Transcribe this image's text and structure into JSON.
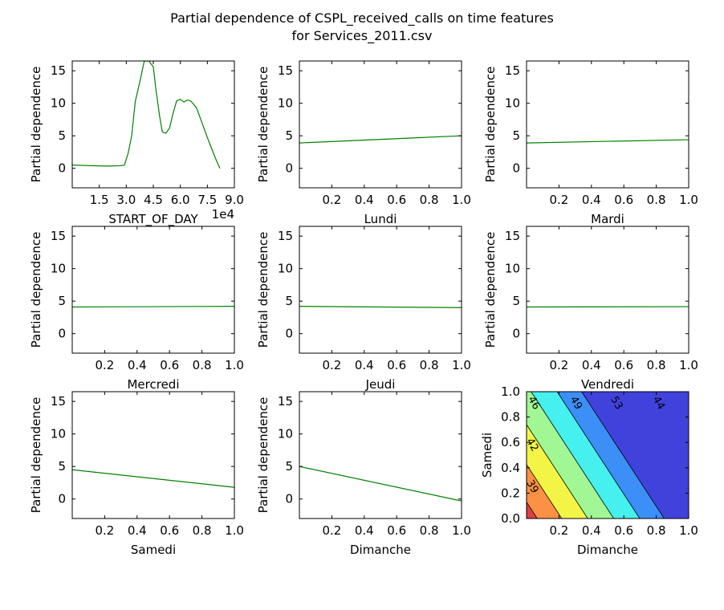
{
  "title_line1": "Partial dependence of CSPL_received_calls on time features",
  "title_line2": "for Services_2011.csv",
  "colors": {
    "line": "#008000",
    "axes": "#000000",
    "background": "#ffffff"
  },
  "chart_data": [
    {
      "type": "line",
      "xlabel": "START_OF_DAY",
      "ylabel": "Partial dependence",
      "x_offset_text": "1e4",
      "xlim": [
        0,
        9.0
      ],
      "ylim": [
        -3,
        16.5
      ],
      "xticks": [
        1.5,
        3.0,
        4.5,
        6.0,
        7.5,
        9.0
      ],
      "xtick_labels": [
        "1.5",
        "3.0",
        "4.5",
        "6.0",
        "7.5",
        "9.0"
      ],
      "yticks": [
        0,
        5,
        10,
        15
      ],
      "ytick_labels": [
        "0",
        "5",
        "10",
        "15"
      ],
      "series": [
        {
          "x": [
            0.0,
            1.0,
            2.0,
            2.7,
            2.9,
            3.1,
            3.3,
            3.5,
            3.75,
            4.0,
            4.25,
            4.5,
            4.65,
            4.85,
            5.0,
            5.2,
            5.4,
            5.6,
            5.8,
            6.0,
            6.2,
            6.4,
            6.6,
            6.9,
            7.2,
            7.6,
            8.0,
            8.2
          ],
          "y": [
            0.5,
            0.4,
            0.35,
            0.4,
            0.5,
            2.3,
            5.0,
            10.3,
            13.3,
            16.5,
            16.5,
            15.6,
            12.0,
            8.0,
            5.6,
            5.4,
            6.2,
            8.5,
            10.4,
            10.6,
            10.2,
            10.5,
            10.3,
            9.3,
            7.0,
            4.0,
            1.2,
            0.0
          ]
        }
      ]
    },
    {
      "type": "line",
      "xlabel": "Lundi",
      "ylabel": "Partial dependence",
      "xlim": [
        0,
        1.0
      ],
      "ylim": [
        -3,
        16.5
      ],
      "xticks": [
        0.2,
        0.4,
        0.6,
        0.8,
        1.0
      ],
      "xtick_labels": [
        "0.2",
        "0.4",
        "0.6",
        "0.8",
        "1.0"
      ],
      "yticks": [
        0,
        5,
        10,
        15
      ],
      "ytick_labels": [
        "0",
        "5",
        "10",
        "15"
      ],
      "series": [
        {
          "x": [
            0.0,
            1.0
          ],
          "y": [
            3.9,
            5.0
          ]
        }
      ]
    },
    {
      "type": "line",
      "xlabel": "Mardi",
      "ylabel": "Partial dependence",
      "xlim": [
        0,
        1.0
      ],
      "ylim": [
        -3,
        16.5
      ],
      "xticks": [
        0.2,
        0.4,
        0.6,
        0.8,
        1.0
      ],
      "xtick_labels": [
        "0.2",
        "0.4",
        "0.6",
        "0.8",
        "1.0"
      ],
      "yticks": [
        0,
        5,
        10,
        15
      ],
      "ytick_labels": [
        "0",
        "5",
        "10",
        "15"
      ],
      "series": [
        {
          "x": [
            0.0,
            1.0
          ],
          "y": [
            3.9,
            4.4
          ]
        }
      ]
    },
    {
      "type": "line",
      "xlabel": "Mercredi",
      "ylabel": "Partial dependence",
      "xlim": [
        0,
        1.0
      ],
      "ylim": [
        -3,
        16.5
      ],
      "xticks": [
        0.2,
        0.4,
        0.6,
        0.8,
        1.0
      ],
      "xtick_labels": [
        "0.2",
        "0.4",
        "0.6",
        "0.8",
        "1.0"
      ],
      "yticks": [
        0,
        5,
        10,
        15
      ],
      "ytick_labels": [
        "0",
        "5",
        "10",
        "15"
      ],
      "series": [
        {
          "x": [
            0.0,
            1.0
          ],
          "y": [
            4.1,
            4.2
          ]
        }
      ]
    },
    {
      "type": "line",
      "xlabel": "Jeudi",
      "ylabel": "Partial dependence",
      "xlim": [
        0,
        1.0
      ],
      "ylim": [
        -3,
        16.5
      ],
      "xticks": [
        0.2,
        0.4,
        0.6,
        0.8,
        1.0
      ],
      "xtick_labels": [
        "0.2",
        "0.4",
        "0.6",
        "0.8",
        "1.0"
      ],
      "yticks": [
        0,
        5,
        10,
        15
      ],
      "ytick_labels": [
        "0",
        "5",
        "10",
        "15"
      ],
      "series": [
        {
          "x": [
            0.0,
            1.0
          ],
          "y": [
            4.2,
            4.0
          ]
        }
      ]
    },
    {
      "type": "line",
      "xlabel": "Vendredi",
      "ylabel": "Partial dependence",
      "xlim": [
        0,
        1.0
      ],
      "ylim": [
        -3,
        16.5
      ],
      "xticks": [
        0.2,
        0.4,
        0.6,
        0.8,
        1.0
      ],
      "xtick_labels": [
        "0.2",
        "0.4",
        "0.6",
        "0.8",
        "1.0"
      ],
      "yticks": [
        0,
        5,
        10,
        15
      ],
      "ytick_labels": [
        "0",
        "5",
        "10",
        "15"
      ],
      "series": [
        {
          "x": [
            0.0,
            1.0
          ],
          "y": [
            4.1,
            4.15
          ]
        }
      ]
    },
    {
      "type": "line",
      "xlabel": "Samedi",
      "ylabel": "Partial dependence",
      "xlim": [
        0,
        1.0
      ],
      "ylim": [
        -3,
        16.5
      ],
      "xticks": [
        0.2,
        0.4,
        0.6,
        0.8,
        1.0
      ],
      "xtick_labels": [
        "0.2",
        "0.4",
        "0.6",
        "0.8",
        "1.0"
      ],
      "yticks": [
        0,
        5,
        10,
        15
      ],
      "ytick_labels": [
        "0",
        "5",
        "10",
        "15"
      ],
      "series": [
        {
          "x": [
            0.0,
            1.0
          ],
          "y": [
            4.5,
            1.8
          ]
        }
      ]
    },
    {
      "type": "line",
      "xlabel": "Dimanche",
      "ylabel": "Partial dependence",
      "xlim": [
        0,
        1.0
      ],
      "ylim": [
        -3,
        16.5
      ],
      "xticks": [
        0.2,
        0.4,
        0.6,
        0.8,
        1.0
      ],
      "xtick_labels": [
        "0.2",
        "0.4",
        "0.6",
        "0.8",
        "1.0"
      ],
      "yticks": [
        0,
        5,
        10,
        15
      ],
      "ytick_labels": [
        "0",
        "5",
        "10",
        "15"
      ],
      "series": [
        {
          "x": [
            0.0,
            1.0
          ],
          "y": [
            5.0,
            -0.3
          ]
        }
      ]
    },
    {
      "type": "contour",
      "xlabel": "Dimanche",
      "ylabel": "Samedi",
      "xlim": [
        0,
        1.0
      ],
      "ylim": [
        0,
        1.0
      ],
      "xticks": [
        0.2,
        0.4,
        0.6,
        0.8,
        1.0
      ],
      "xtick_labels": [
        "0.2",
        "0.4",
        "0.6",
        "0.8",
        "1.0"
      ],
      "yticks": [
        0.0,
        0.2,
        0.4,
        0.6,
        0.8,
        1.0
      ],
      "ytick_labels": [
        "0.0",
        "0.2",
        "0.4",
        "0.6",
        "0.8",
        "1.0"
      ],
      "surface": {
        "a": 5.3,
        "b": 2.7,
        "c": 0.0
      },
      "level_boundaries": [
        0.35,
        1.15,
        2.0,
        2.85,
        3.7,
        4.5
      ],
      "band_colors": [
        "#dd4145",
        "#fb9144",
        "#f2f545",
        "#a0f794",
        "#45f0ef",
        "#3b8ff7",
        "#4042dc"
      ],
      "contour_labels": [
        {
          "text": "39",
          "x": 0.02,
          "y": 0.3
        },
        {
          "text": "42",
          "x": 0.02,
          "y": 0.63
        },
        {
          "text": "46",
          "x": 0.03,
          "y": 0.96
        },
        {
          "text": "49",
          "x": 0.29,
          "y": 0.96
        },
        {
          "text": "53",
          "x": 0.54,
          "y": 0.96
        },
        {
          "text": "44",
          "x": 0.8,
          "y": 0.96
        }
      ]
    }
  ]
}
